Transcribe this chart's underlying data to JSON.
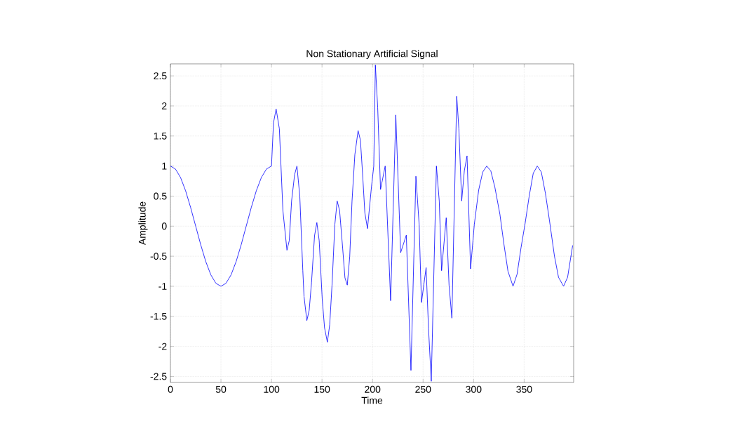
{
  "chart_data": {
    "type": "line",
    "title": "Non Stationary Artificial Signal",
    "xlabel": "Time",
    "ylabel": "Amplitude",
    "x": [
      0,
      5,
      10,
      15,
      20,
      25,
      30,
      35,
      40,
      45,
      50,
      55,
      60,
      65,
      70,
      75,
      80,
      85,
      90,
      95,
      100,
      102,
      104.6,
      107.8,
      111.3,
      115.3,
      117.6,
      119.9,
      122.9,
      125.2,
      128,
      131,
      132.2,
      135,
      137.3,
      139.6,
      142.6,
      144.9,
      147.2,
      150.2,
      152.5,
      155.3,
      157.6,
      159.9,
      162.7,
      165,
      167.4,
      170.4,
      172.7,
      175,
      177.4,
      179.7,
      182.5,
      185.7,
      188,
      190.1,
      192.4,
      195,
      198.9,
      201.2,
      202.8,
      205.1,
      207.9,
      212.5,
      217.9,
      223,
      227.8,
      233.4,
      238,
      242.9,
      246.1,
      248.4,
      253,
      255.4,
      258.1,
      263.2,
      266,
      268.3,
      272.9,
      275.7,
      278.5,
      283.3,
      285.4,
      288.2,
      290.8,
      293.5,
      297,
      300.7,
      305,
      309,
      313,
      317,
      321,
      326,
      330,
      334,
      339,
      343,
      347,
      351,
      355,
      359,
      363,
      367,
      371,
      375,
      380,
      384,
      389,
      393,
      398
    ],
    "series": [
      {
        "color": "#0000ff",
        "values": [
          1,
          0.95,
          0.81,
          0.59,
          0.31,
          0,
          -0.31,
          -0.59,
          -0.81,
          -0.95,
          -1,
          -0.95,
          -0.81,
          -0.59,
          -0.31,
          0,
          0.31,
          0.59,
          0.81,
          0.95,
          1,
          1.72,
          1.95,
          1.62,
          0.26,
          -0.4,
          -0.24,
          0.42,
          0.86,
          1,
          0.5,
          -0.74,
          -1.17,
          -1.57,
          -1.4,
          -0.94,
          -0.16,
          0.06,
          -0.24,
          -1.21,
          -1.69,
          -1.93,
          -1.64,
          -0.98,
          0.03,
          0.42,
          0.26,
          -0.36,
          -0.86,
          -0.98,
          -0.51,
          0.42,
          1.19,
          1.59,
          1.43,
          0.88,
          0.22,
          -0.04,
          0.65,
          1,
          2.68,
          1.97,
          0.61,
          1,
          -1.24,
          1.85,
          -0.44,
          -0.15,
          -2.4,
          0.83,
          0.03,
          -1.27,
          -0.69,
          -1.71,
          -2.58,
          1,
          0.42,
          -0.74,
          0.14,
          -0.98,
          -1.53,
          2.16,
          1.62,
          0.42,
          0.92,
          1.17,
          -0.71,
          0.03,
          0.6,
          0.9,
          1,
          0.92,
          0.65,
          0.2,
          -0.3,
          -0.75,
          -1,
          -0.8,
          -0.35,
          0.05,
          0.5,
          0.88,
          1,
          0.9,
          0.55,
          0.1,
          -0.5,
          -0.85,
          -1,
          -0.85,
          -0.32
        ]
      }
    ],
    "xlim": [
      0,
      399
    ],
    "ylim": [
      -2.6,
      2.7
    ],
    "xticks": [
      0,
      50,
      100,
      150,
      200,
      250,
      300,
      350
    ],
    "yticks": [
      -2.5,
      -2,
      -1.5,
      -1,
      -0.5,
      0,
      0.5,
      1,
      1.5,
      2,
      2.5
    ],
    "grid": true,
    "marker": "none",
    "line_style": "solid"
  }
}
